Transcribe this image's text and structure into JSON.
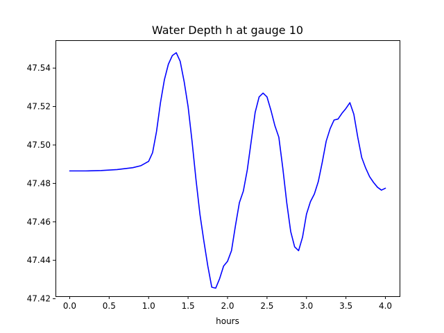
{
  "chart_data": {
    "type": "line",
    "title": "Water Depth h at gauge 10",
    "xlabel": "hours",
    "ylabel": "",
    "xlim": [
      -0.18,
      4.18
    ],
    "ylim": [
      47.4213,
      47.5545
    ],
    "grid": false,
    "x_ticks": [
      0.0,
      0.5,
      1.0,
      1.5,
      2.0,
      2.5,
      3.0,
      3.5,
      4.0
    ],
    "x_tick_labels": [
      "0.0",
      "0.5",
      "1.0",
      "1.5",
      "2.0",
      "2.5",
      "3.0",
      "3.5",
      "4.0"
    ],
    "y_ticks": [
      47.42,
      47.44,
      47.46,
      47.48,
      47.5,
      47.52,
      47.54
    ],
    "y_tick_labels": [
      "47.42",
      "47.44",
      "47.46",
      "47.48",
      "47.50",
      "47.52",
      "47.54"
    ],
    "series": [
      {
        "color": "#0000ff",
        "x": [
          0.0,
          0.2,
          0.4,
          0.6,
          0.8,
          0.9,
          1.0,
          1.05,
          1.1,
          1.15,
          1.2,
          1.25,
          1.3,
          1.35,
          1.4,
          1.45,
          1.5,
          1.55,
          1.6,
          1.65,
          1.7,
          1.75,
          1.8,
          1.85,
          1.9,
          1.95,
          2.0,
          2.05,
          2.1,
          2.15,
          2.2,
          2.25,
          2.3,
          2.35,
          2.4,
          2.45,
          2.5,
          2.55,
          2.6,
          2.65,
          2.7,
          2.75,
          2.8,
          2.85,
          2.9,
          2.95,
          3.0,
          3.05,
          3.1,
          3.15,
          3.2,
          3.25,
          3.3,
          3.35,
          3.4,
          3.45,
          3.5,
          3.55,
          3.6,
          3.65,
          3.7,
          3.75,
          3.8,
          3.85,
          3.9,
          3.95,
          4.0
        ],
        "y": [
          47.4865,
          47.4865,
          47.4867,
          47.4872,
          47.4882,
          47.4892,
          47.4915,
          47.496,
          47.507,
          47.522,
          47.534,
          47.542,
          47.5465,
          47.548,
          47.5435,
          47.533,
          47.52,
          47.502,
          47.482,
          47.464,
          47.45,
          47.437,
          47.426,
          47.4255,
          47.4305,
          47.437,
          47.4395,
          47.445,
          47.458,
          47.47,
          47.476,
          47.487,
          47.502,
          47.517,
          47.525,
          47.527,
          47.525,
          47.518,
          47.51,
          47.504,
          47.488,
          47.47,
          47.455,
          47.447,
          47.445,
          47.452,
          47.464,
          47.4705,
          47.4745,
          47.481,
          47.491,
          47.502,
          47.5085,
          47.513,
          47.5135,
          47.5165,
          47.519,
          47.522,
          47.516,
          47.504,
          47.4935,
          47.488,
          47.4835,
          47.4805,
          47.478,
          47.4765,
          47.4775
        ]
      }
    ]
  }
}
